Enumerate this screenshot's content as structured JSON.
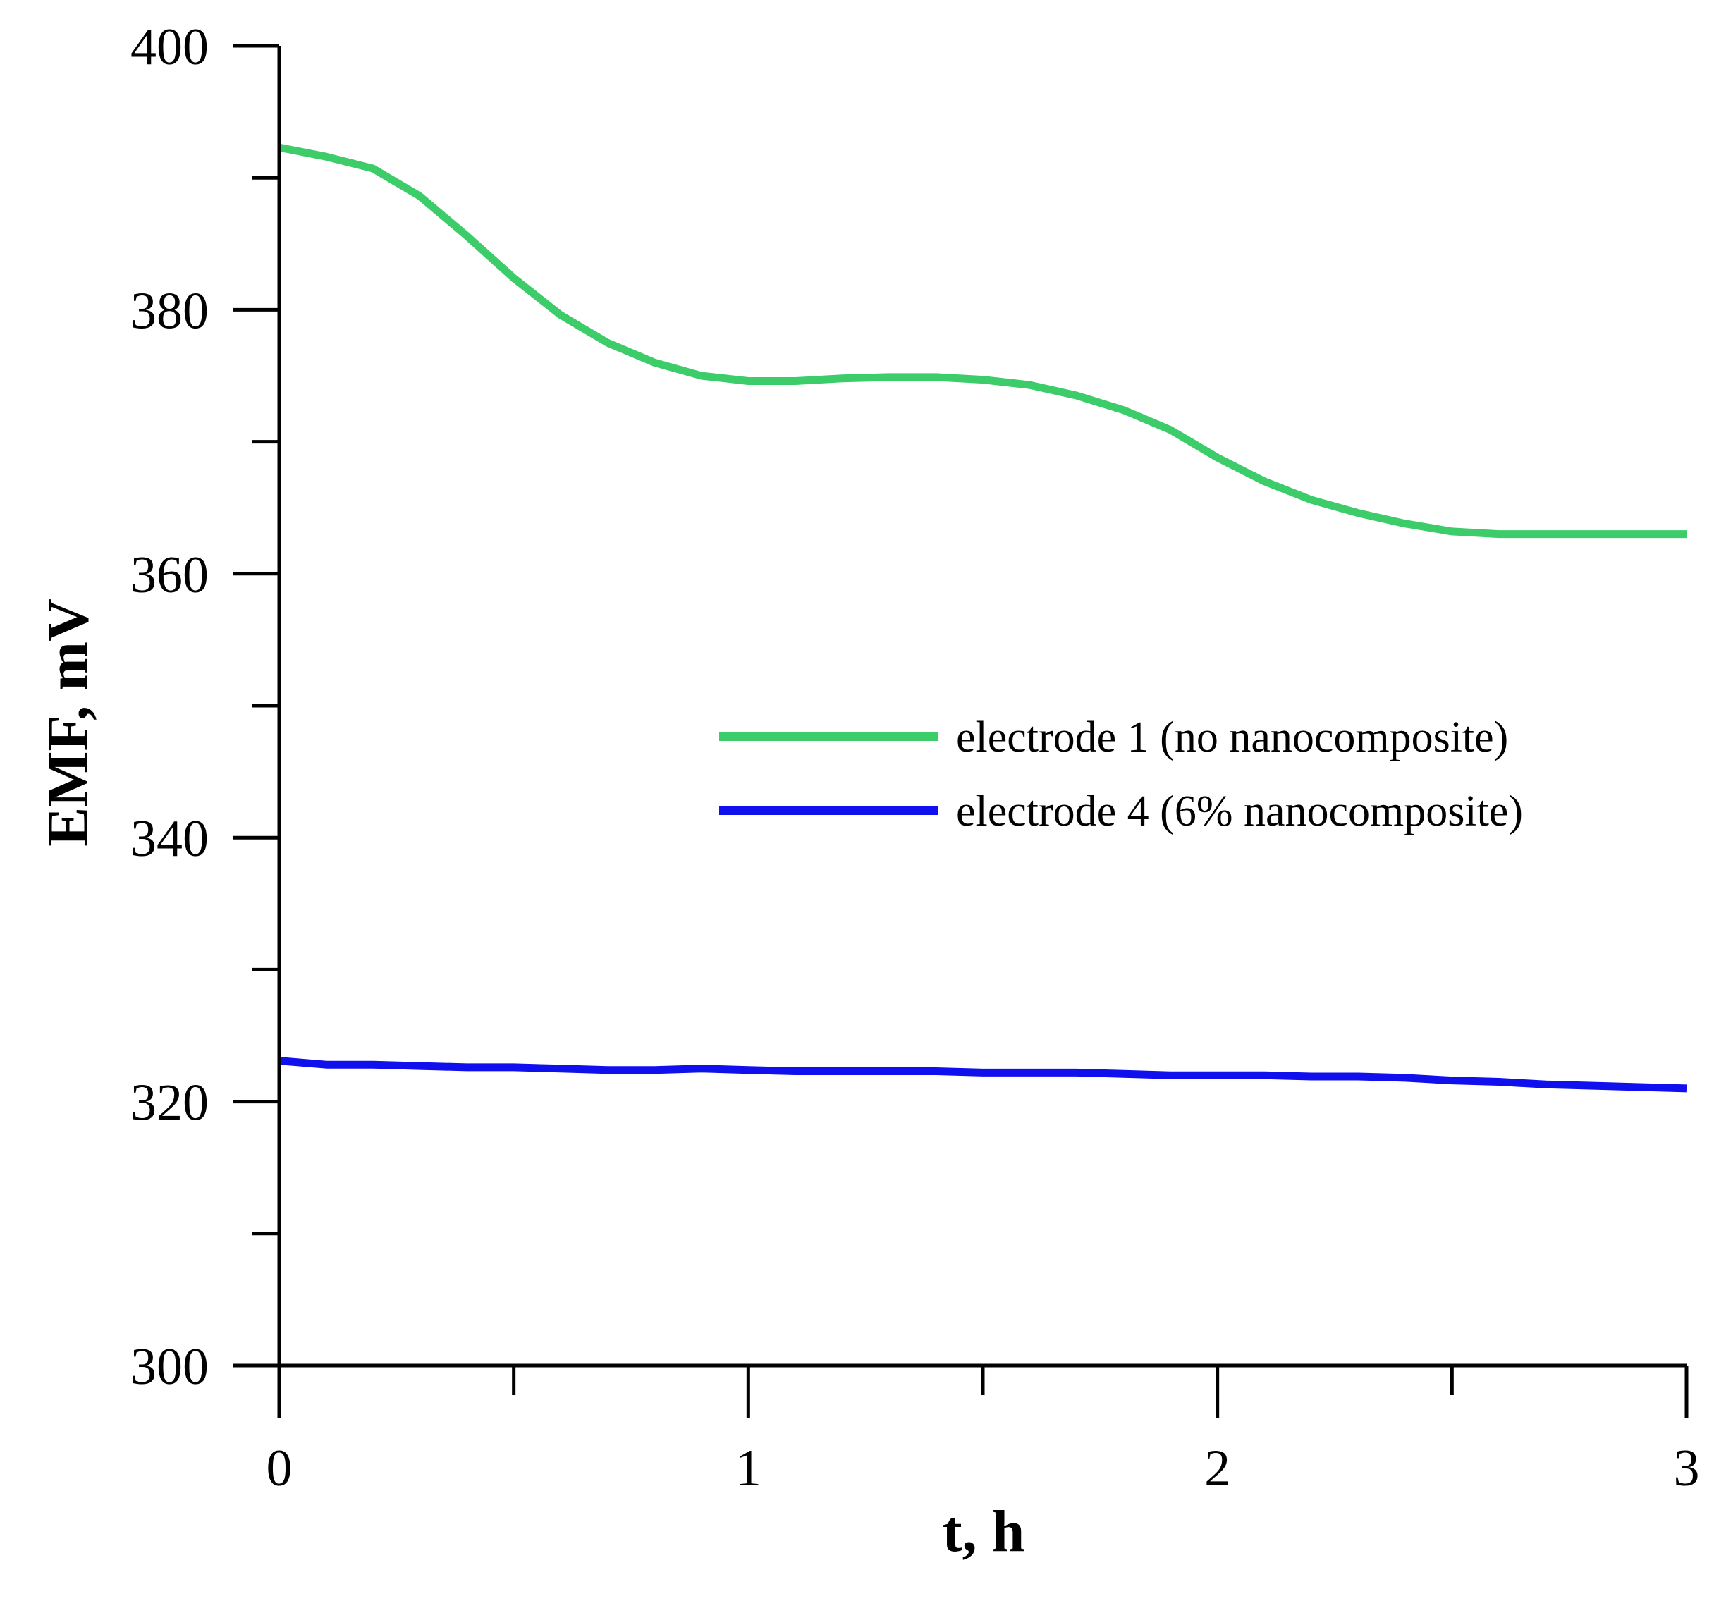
{
  "chart_data": {
    "type": "line",
    "xlabel": "t, h",
    "ylabel": "EMF, mV",
    "xlim": [
      0,
      3
    ],
    "ylim": [
      300,
      400
    ],
    "x_major_ticks": [
      0,
      1,
      2,
      3
    ],
    "x_minor_ticks": [
      0.5,
      1.5,
      2.5
    ],
    "y_major_ticks": [
      300,
      320,
      340,
      360,
      380,
      400
    ],
    "y_minor_ticks": [
      310,
      330,
      350,
      370,
      390
    ],
    "x_tick_labels": [
      "0",
      "1",
      "2",
      "3"
    ],
    "y_tick_labels": [
      "300",
      "320",
      "340",
      "360",
      "380",
      "400"
    ],
    "grid": false,
    "legend_position": "center-right",
    "series": [
      {
        "name": "electrode 1 (no nanocomposite)",
        "color": "#3dcc6a",
        "x": [
          0,
          0.1,
          0.2,
          0.3,
          0.4,
          0.5,
          0.6,
          0.7,
          0.8,
          0.9,
          1.0,
          1.1,
          1.2,
          1.3,
          1.4,
          1.5,
          1.6,
          1.7,
          1.8,
          1.9,
          2.0,
          2.1,
          2.2,
          2.3,
          2.4,
          2.5,
          2.6,
          2.7,
          2.8,
          2.9,
          3.0
        ],
        "y": [
          392.3,
          391.6,
          390.7,
          388.6,
          385.6,
          382.4,
          379.6,
          377.5,
          376.0,
          375.0,
          374.6,
          374.6,
          374.8,
          374.9,
          374.9,
          374.7,
          374.3,
          373.5,
          372.4,
          370.9,
          368.8,
          367.0,
          365.6,
          364.6,
          363.8,
          363.2,
          363.0,
          363.0,
          363.0,
          363.0,
          363.0
        ]
      },
      {
        "name": "electrode 4 (6% nanocomposite)",
        "color": "#1010ee",
        "x": [
          0,
          0.1,
          0.2,
          0.3,
          0.4,
          0.5,
          0.6,
          0.7,
          0.8,
          0.9,
          1.0,
          1.1,
          1.2,
          1.3,
          1.4,
          1.5,
          1.6,
          1.7,
          1.8,
          1.9,
          2.0,
          2.1,
          2.2,
          2.3,
          2.4,
          2.5,
          2.6,
          2.7,
          2.8,
          2.9,
          3.0
        ],
        "y": [
          323.1,
          322.8,
          322.8,
          322.7,
          322.6,
          322.6,
          322.5,
          322.4,
          322.4,
          322.5,
          322.4,
          322.3,
          322.3,
          322.3,
          322.3,
          322.2,
          322.2,
          322.2,
          322.1,
          322.0,
          322.0,
          322.0,
          321.9,
          321.9,
          321.8,
          321.6,
          321.5,
          321.3,
          321.2,
          321.1,
          321.0
        ]
      }
    ]
  }
}
